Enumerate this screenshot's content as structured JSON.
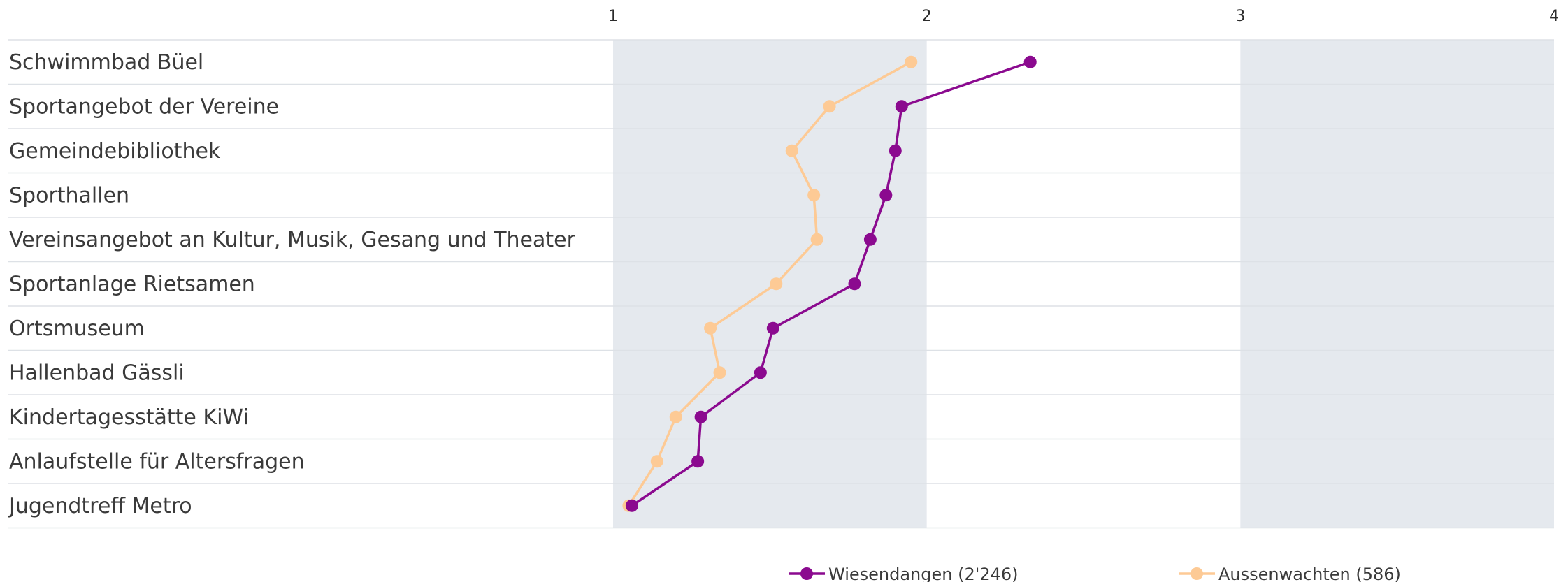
{
  "chart_data": {
    "type": "line",
    "orientation": "horizontal",
    "xlim": [
      1,
      4
    ],
    "x_ticks": [
      "1",
      "2",
      "3",
      "4"
    ],
    "categories": [
      "Schwimmbad Büel",
      "Sportangebot der Vereine",
      "Gemeindebibliothek",
      "Sporthallen",
      "Vereinsangebot an Kultur, Musik, Gesang und Theater",
      "Sportanlage Rietsamen",
      "Ortsmuseum",
      "Hallenbad Gässli",
      "Kindertagesstätte KiWi",
      "Anlaufstelle für Altersfragen",
      "Jugendtreff Metro"
    ],
    "series": [
      {
        "name": "Wiesendangen (2'246)",
        "color": "#8b0a8f",
        "values": [
          2.33,
          1.92,
          1.9,
          1.87,
          1.82,
          1.77,
          1.51,
          1.47,
          1.28,
          1.27,
          1.06
        ]
      },
      {
        "name": "Aussenwachten (586)",
        "color": "#fdca95",
        "values": [
          1.95,
          1.69,
          1.57,
          1.64,
          1.65,
          1.52,
          1.31,
          1.34,
          1.2,
          1.14,
          1.05
        ]
      }
    ],
    "bands": [
      [
        1,
        2
      ],
      [
        3,
        4
      ]
    ],
    "band_color": "#e5e9ee",
    "grid": true,
    "legend_position": "bottom"
  }
}
